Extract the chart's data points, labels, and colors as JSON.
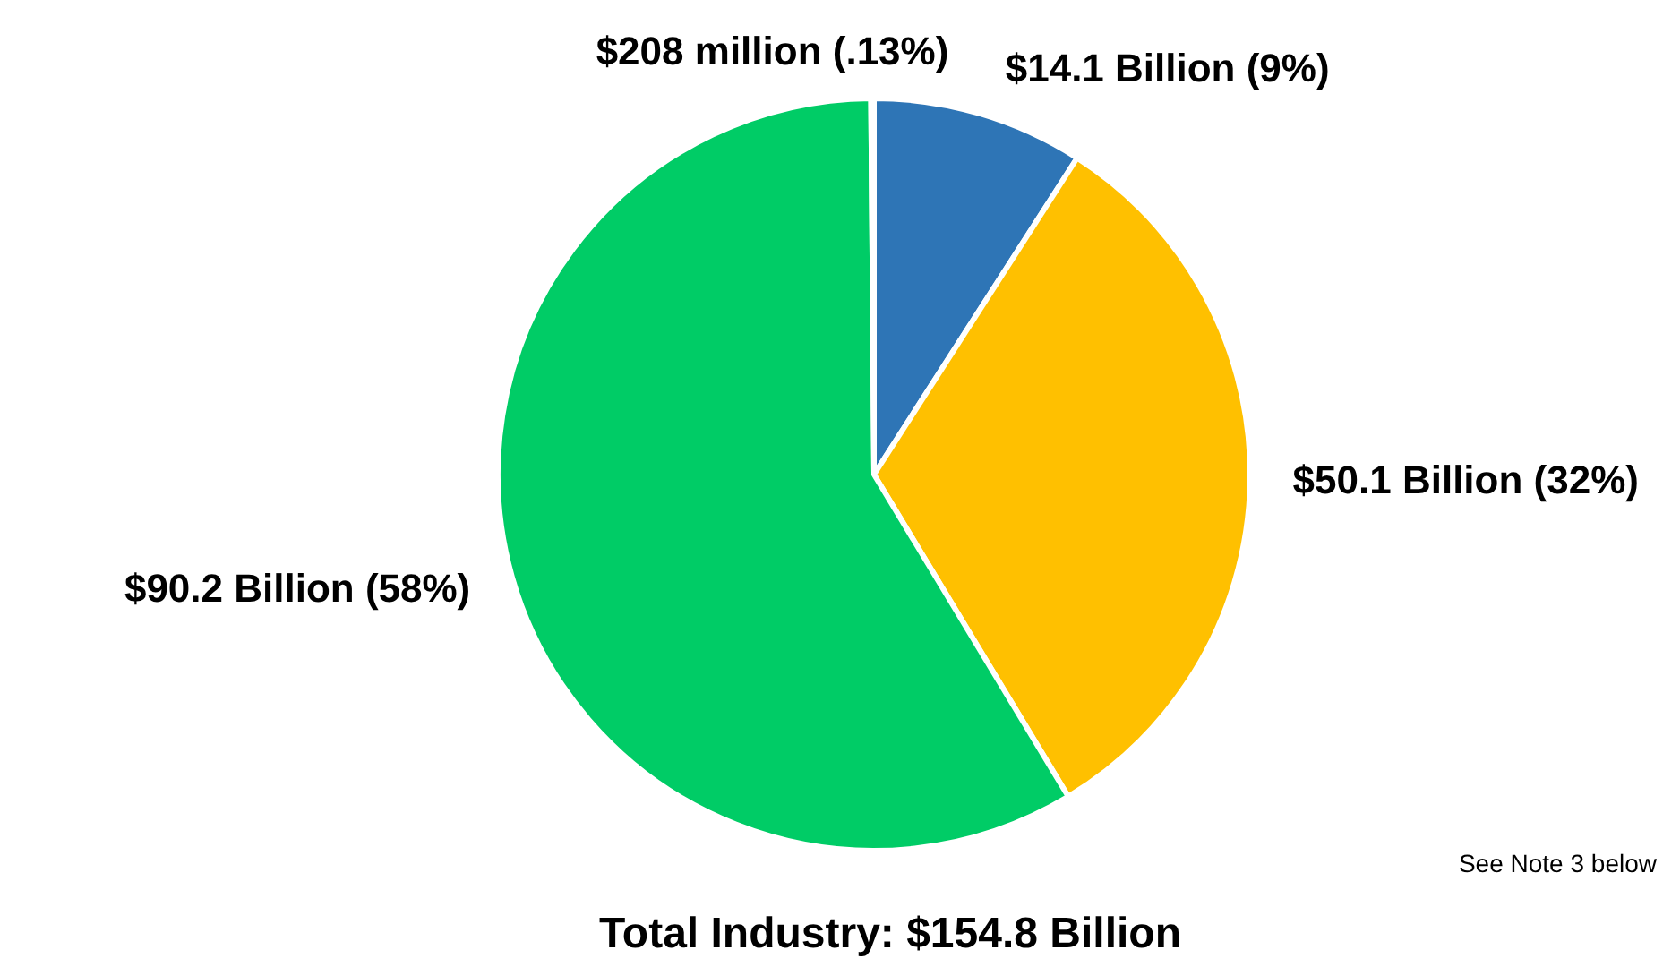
{
  "chart_data": {
    "type": "pie",
    "title": "Total Industry: $154.8 Billion",
    "categories": [
      null,
      null,
      null,
      null
    ],
    "values": [
      9,
      32,
      58,
      0.13
    ],
    "value_labels": [
      "$14.1 Billion (9%)",
      "$50.1 Billion (32%)",
      "$90.2 Billion (58%)",
      "$208 million (.13%)"
    ],
    "colors": [
      "#2e75b6",
      "#ffc000",
      "#00cc66",
      "#ed7d31"
    ],
    "annotations": [
      "See Note 3 below"
    ]
  }
}
